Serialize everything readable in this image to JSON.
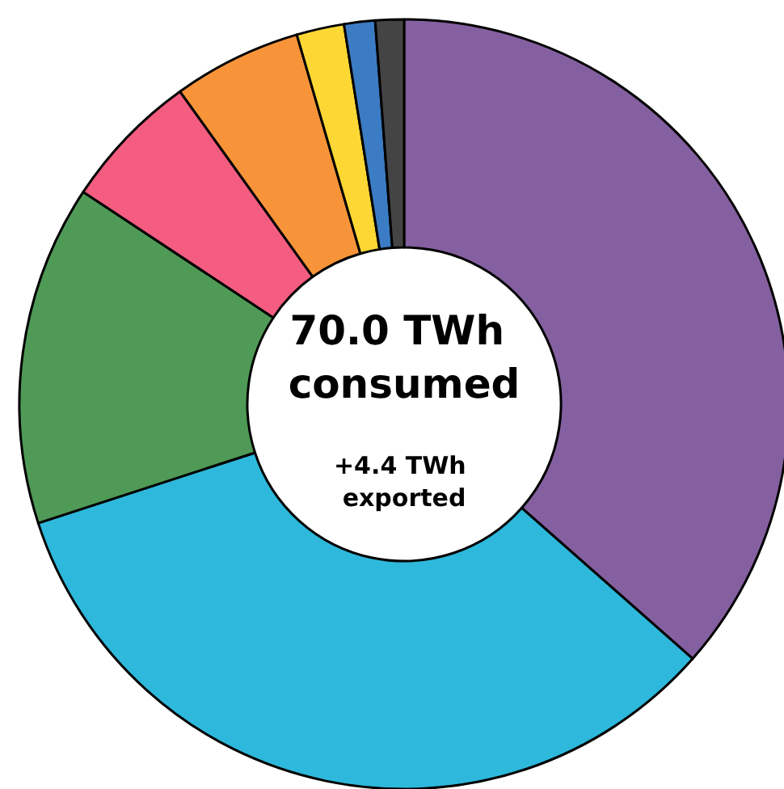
{
  "chart_data": {
    "type": "donut",
    "title": "70.0 TWh consumed",
    "annotations": [
      "+4.4 TWh exported"
    ],
    "categories": [
      null,
      null,
      null,
      null,
      null,
      null,
      null,
      null
    ],
    "values": [
      36.5,
      33.5,
      14.3,
      5.8,
      5.4,
      2.0,
      1.3,
      1.2
    ],
    "colors": [
      "#8560a0",
      "#2eb8dc",
      "#4f9a57",
      "#f45d80",
      "#f7943a",
      "#fdd835",
      "#3b7cc4",
      "#444444"
    ]
  }
}
